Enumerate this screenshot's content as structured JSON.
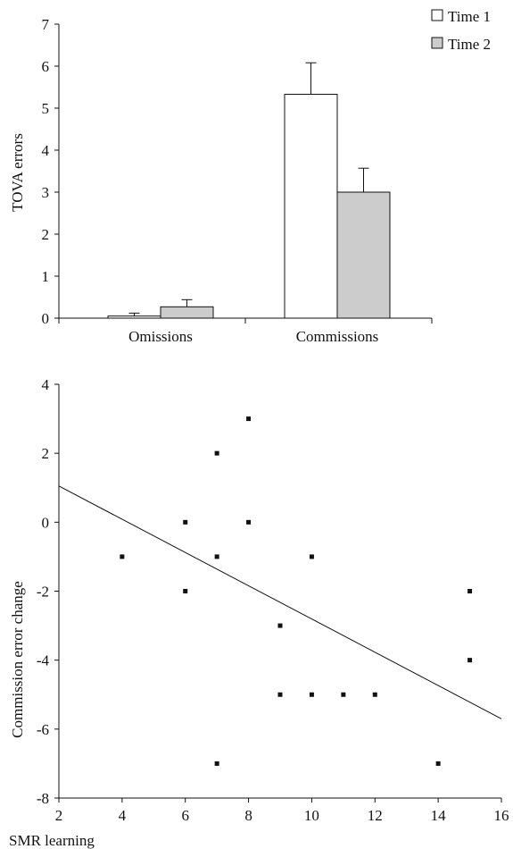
{
  "chart_data": [
    {
      "type": "bar",
      "ylabel": "TOVA errors",
      "xlabel": "",
      "categories": [
        "Omissions",
        "Commissions"
      ],
      "series": [
        {
          "name": "Time 1",
          "values": [
            0.05,
            5.33
          ],
          "errors": [
            0.07,
            0.75
          ],
          "color": "#ffffff"
        },
        {
          "name": "Time 2",
          "values": [
            0.27,
            3.0
          ],
          "errors": [
            0.17,
            0.57
          ],
          "color": "#cccccc"
        }
      ],
      "ylim": [
        0,
        7
      ],
      "yticks": [
        "0",
        "1",
        "2",
        "3",
        "4",
        "5",
        "6",
        "7"
      ],
      "legend_position": "top-right",
      "grid": false
    },
    {
      "type": "scatter",
      "xlabel": "SMR learning",
      "ylabel": "Commission error change",
      "xlim": [
        2,
        16
      ],
      "ylim": [
        -8,
        4
      ],
      "xticks": [
        "2",
        "4",
        "6",
        "8",
        "10",
        "12",
        "14",
        "16"
      ],
      "yticks": [
        "4",
        "2",
        "0",
        "-2",
        "-4",
        "-6",
        "-8"
      ],
      "points": [
        {
          "x": 4,
          "y": -1
        },
        {
          "x": 6,
          "y": 0
        },
        {
          "x": 6,
          "y": -2
        },
        {
          "x": 7,
          "y": 2
        },
        {
          "x": 7,
          "y": -1
        },
        {
          "x": 7,
          "y": -7
        },
        {
          "x": 8,
          "y": 3
        },
        {
          "x": 8,
          "y": 0
        },
        {
          "x": 9,
          "y": -3
        },
        {
          "x": 9,
          "y": -5
        },
        {
          "x": 10,
          "y": -1
        },
        {
          "x": 10,
          "y": -5
        },
        {
          "x": 11,
          "y": -5
        },
        {
          "x": 12,
          "y": -5
        },
        {
          "x": 14,
          "y": -7
        },
        {
          "x": 15,
          "y": -2
        },
        {
          "x": 15,
          "y": -4
        }
      ],
      "fit_line": {
        "x": [
          2,
          16
        ],
        "y": [
          1.05,
          -5.7
        ]
      },
      "grid": false
    }
  ]
}
